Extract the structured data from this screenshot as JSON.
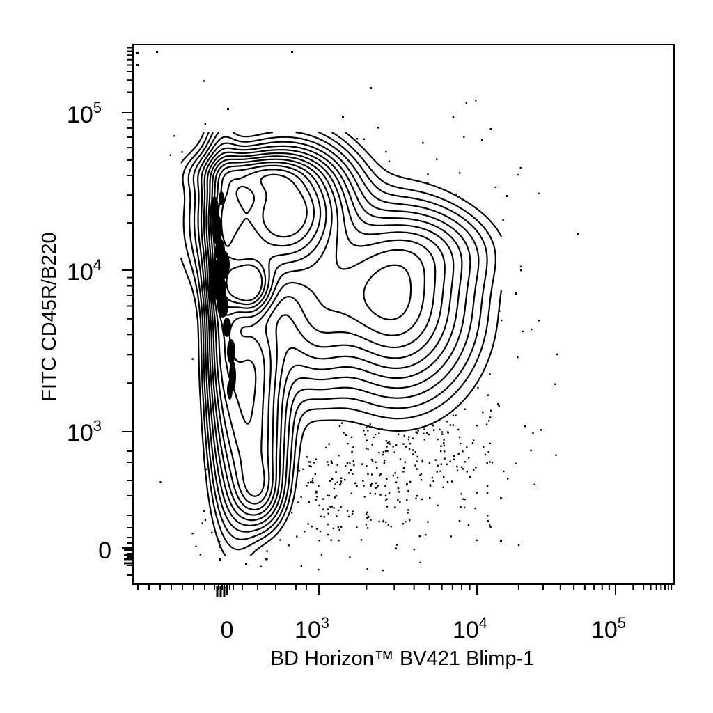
{
  "chart_data": {
    "type": "contour",
    "xlabel": "BD Horizon™ BV421 Blimp-1",
    "ylabel": "FITC CD45R/B220",
    "x_scale": "biexponential",
    "y_scale": "biexponential",
    "x_ticks": [
      {
        "base": "0",
        "exp": ""
      },
      {
        "base": "10",
        "exp": "3"
      },
      {
        "base": "10",
        "exp": "4"
      },
      {
        "base": "10",
        "exp": "5"
      }
    ],
    "y_ticks": [
      {
        "base": "0",
        "exp": ""
      },
      {
        "base": "10",
        "exp": "3"
      },
      {
        "base": "10",
        "exp": "4"
      },
      {
        "base": "10",
        "exp": "5"
      }
    ],
    "populations": [
      {
        "name": "",
        "x_center": 200,
        "y_center": 7500,
        "level": "high"
      },
      {
        "name": "",
        "x_center": 400,
        "y_center": 20000,
        "level": "high"
      },
      {
        "name": "",
        "x_center": 3300,
        "y_center": 6000,
        "level": "medium"
      },
      {
        "name": "",
        "x_center": 250,
        "y_center": 400,
        "level": "low"
      }
    ],
    "grid": false,
    "legend": "none"
  }
}
